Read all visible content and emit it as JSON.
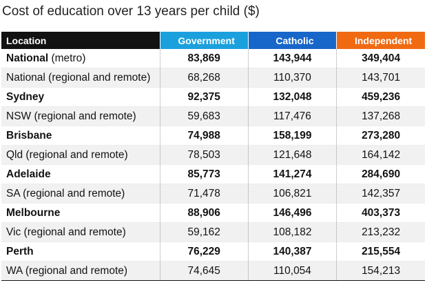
{
  "chart_data": {
    "type": "table",
    "title": "Cost of education over 13 years per child ($)",
    "header_colors": {
      "Location": "#121212",
      "Government": "#1aa0dc",
      "Catholic": "#1766c9",
      "Independent": "#f06a12"
    },
    "columns": [
      "Location",
      "Government",
      "Catholic",
      "Independent"
    ],
    "rows": [
      {
        "location": "National",
        "suffix": " (metro)",
        "major": true,
        "values": [
          "83,869",
          "143,944",
          "349,404"
        ]
      },
      {
        "location": "National (regional and remote)",
        "suffix": "",
        "major": false,
        "values": [
          "68,268",
          "110,370",
          "143,701"
        ]
      },
      {
        "location": "Sydney",
        "suffix": "",
        "major": true,
        "values": [
          "92,375",
          "132,048",
          "459,236"
        ]
      },
      {
        "location": "NSW (regional and remote)",
        "suffix": "",
        "major": false,
        "values": [
          "59,683",
          "117,476",
          "137,268"
        ]
      },
      {
        "location": "Brisbane",
        "suffix": "",
        "major": true,
        "values": [
          "74,988",
          "158,199",
          "273,280"
        ]
      },
      {
        "location": "Qld (regional and remote)",
        "suffix": "",
        "major": false,
        "values": [
          "78,503",
          "121,648",
          "164,142"
        ]
      },
      {
        "location": "Adelaide",
        "suffix": "",
        "major": true,
        "values": [
          "85,773",
          "141,274",
          "284,690"
        ]
      },
      {
        "location": "SA (regional and remote)",
        "suffix": "",
        "major": false,
        "values": [
          "71,478",
          "106,821",
          "142,357"
        ]
      },
      {
        "location": "Melbourne",
        "suffix": "",
        "major": true,
        "values": [
          "88,906",
          "146,496",
          "403,373"
        ]
      },
      {
        "location": "Vic (regional and remote)",
        "suffix": "",
        "major": false,
        "values": [
          "59,162",
          "108,182",
          "213,232"
        ]
      },
      {
        "location": "Perth",
        "suffix": "",
        "major": true,
        "values": [
          "76,229",
          "140,387",
          "215,554"
        ]
      },
      {
        "location": "WA (regional and remote)",
        "suffix": "",
        "major": false,
        "values": [
          "74,645",
          "110,054",
          "154,213"
        ]
      }
    ]
  }
}
